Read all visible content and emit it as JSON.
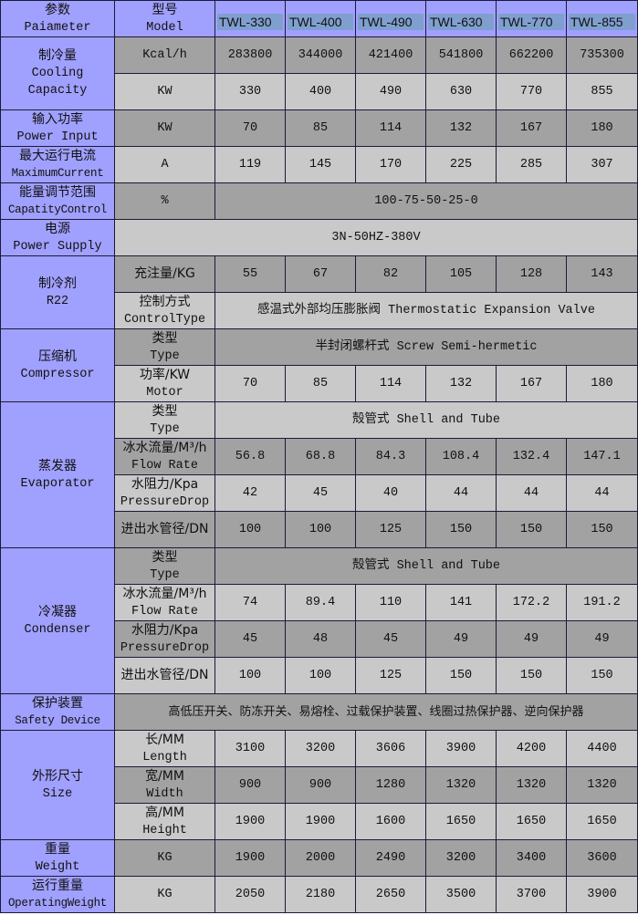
{
  "header": {
    "param_label": [
      "参数",
      "Paiameter"
    ],
    "model_label": [
      "型号",
      "Model"
    ],
    "models": [
      "TWL-330",
      "TWL-400",
      "TWL-490",
      "TWL-630",
      "TWL-770",
      "TWL-855"
    ]
  },
  "groups": [
    {
      "label": [
        "制冷量",
        "Cooling",
        "Capacity"
      ],
      "rows": [
        {
          "unit": [
            "Kcal/h"
          ],
          "values": [
            "283800",
            "344000",
            "421400",
            "541800",
            "662200",
            "735300"
          ]
        },
        {
          "unit": [
            "KW"
          ],
          "values": [
            "330",
            "400",
            "490",
            "630",
            "770",
            "855"
          ]
        }
      ]
    },
    {
      "label": [
        "输入功率",
        "Power Input"
      ],
      "rows": [
        {
          "unit": [
            "KW"
          ],
          "values": [
            "70",
            "85",
            "114",
            "132",
            "167",
            "180"
          ]
        }
      ]
    },
    {
      "label": [
        "最大运行电流",
        "MaximumCurrent"
      ],
      "rows": [
        {
          "unit": [
            "A"
          ],
          "values": [
            "119",
            "145",
            "170",
            "225",
            "285",
            "307"
          ]
        }
      ]
    },
    {
      "label": [
        "能量调节范围",
        "CapatityControl"
      ],
      "rows": [
        {
          "unit": [
            "%"
          ],
          "span": "100-75-50-25-0"
        }
      ]
    },
    {
      "label": [
        "电源",
        "Power Supply"
      ],
      "rows": [
        {
          "span_all": "3N-50HZ-380V"
        }
      ]
    },
    {
      "label": [
        "制冷剂",
        "R22"
      ],
      "rows": [
        {
          "unit": [
            "充注量/KG"
          ],
          "values": [
            "55",
            "67",
            "82",
            "105",
            "128",
            "143"
          ]
        },
        {
          "unit": [
            "控制方式",
            "ControlType"
          ],
          "span": "感温式外部均压膨胀阀 Thermostatic Expansion Valve"
        }
      ]
    },
    {
      "label": [
        "压缩机",
        "Compressor"
      ],
      "rows": [
        {
          "unit": [
            "类型",
            "Type"
          ],
          "span": "半封闭螺杆式 Screw Semi-hermetic"
        },
        {
          "unit": [
            "功率/KW",
            "Motor"
          ],
          "values": [
            "70",
            "85",
            "114",
            "132",
            "167",
            "180"
          ]
        }
      ]
    },
    {
      "label": [
        "蒸发器",
        "Evaporator"
      ],
      "rows": [
        {
          "unit": [
            "类型",
            "Type"
          ],
          "span": "殻管式  Shell and Tube"
        },
        {
          "unit": [
            "冰水流量/M³/h",
            "Flow Rate"
          ],
          "values": [
            "56.8",
            "68.8",
            "84.3",
            "108.4",
            "132.4",
            "147.1"
          ]
        },
        {
          "unit": [
            "水阻力/Kpa",
            "PressureDrop"
          ],
          "values": [
            "42",
            "45",
            "40",
            "44",
            "44",
            "44"
          ]
        },
        {
          "unit": [
            "进出水管径/DN"
          ],
          "values": [
            "100",
            "100",
            "125",
            "150",
            "150",
            "150"
          ]
        }
      ]
    },
    {
      "label": [
        "冷凝器",
        "Condenser"
      ],
      "rows": [
        {
          "unit": [
            "类型",
            "Type"
          ],
          "span": "殻管式  Shell and Tube"
        },
        {
          "unit": [
            "冰水流量/M³/h",
            "Flow Rate"
          ],
          "values": [
            "74",
            "89.4",
            "110",
            "141",
            "172.2",
            "191.2"
          ]
        },
        {
          "unit": [
            "水阻力/Kpa",
            "PressureDrop"
          ],
          "values": [
            "45",
            "48",
            "45",
            "49",
            "49",
            "49"
          ]
        },
        {
          "unit": [
            "进出水管径/DN"
          ],
          "values": [
            "100",
            "100",
            "125",
            "150",
            "150",
            "150"
          ]
        }
      ]
    },
    {
      "label": [
        "保护装置",
        "Safety Device"
      ],
      "rows": [
        {
          "span_all": "高低压开关、防冻开关、易熔栓、过载保护装置、线圈过热保护器、逆向保护器"
        }
      ]
    },
    {
      "label": [
        "外形尺寸",
        "Size"
      ],
      "rows": [
        {
          "unit": [
            "长/MM",
            "Length"
          ],
          "values": [
            "3100",
            "3200",
            "3606",
            "3900",
            "4200",
            "4400"
          ]
        },
        {
          "unit": [
            "宽/MM",
            "Width"
          ],
          "values": [
            "900",
            "900",
            "1280",
            "1320",
            "1320",
            "1320"
          ]
        },
        {
          "unit": [
            "高/MM",
            "Height"
          ],
          "values": [
            "1900",
            "1900",
            "1600",
            "1650",
            "1650",
            "1650"
          ]
        }
      ]
    },
    {
      "label": [
        "重量",
        "Weight"
      ],
      "rows": [
        {
          "unit": [
            "KG"
          ],
          "values": [
            "1900",
            "2000",
            "2490",
            "3200",
            "3400",
            "3600"
          ]
        }
      ]
    },
    {
      "label": [
        "运行重量",
        "OperatingWeight"
      ],
      "rows": [
        {
          "unit": [
            "KG"
          ],
          "values": [
            "2050",
            "2180",
            "2650",
            "3500",
            "3700",
            "3900"
          ]
        }
      ]
    }
  ]
}
